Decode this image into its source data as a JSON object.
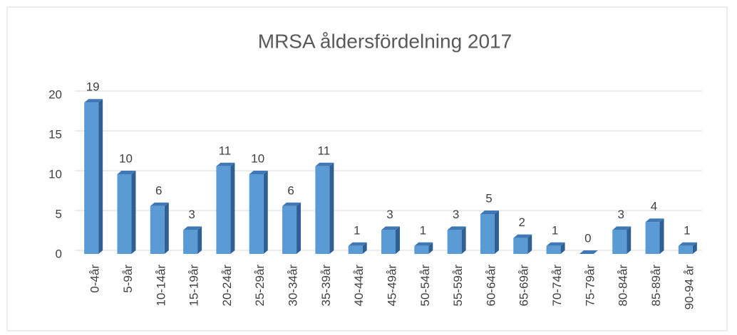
{
  "chart_data": {
    "type": "bar",
    "title": "MRSA åldersfördelning 2017",
    "categories": [
      "0-4år",
      "5-9år",
      "10-14år",
      "15-19år",
      "20-24år",
      "25-29år",
      "30-34år",
      "35-39år",
      "40-44år",
      "45-49år",
      "50-54år",
      "55-59år",
      "60-64år",
      "65-69år",
      "70-74år",
      "75-79år",
      "80-84år",
      "85-89år",
      "90-94 år"
    ],
    "values": [
      19,
      10,
      6,
      3,
      11,
      10,
      6,
      11,
      1,
      3,
      1,
      3,
      5,
      2,
      1,
      0,
      3,
      4,
      1
    ],
    "color": "#5b9bd5",
    "ylim": [
      0,
      20
    ],
    "yticks": [
      0,
      5,
      10,
      15,
      20
    ],
    "grid": true
  }
}
